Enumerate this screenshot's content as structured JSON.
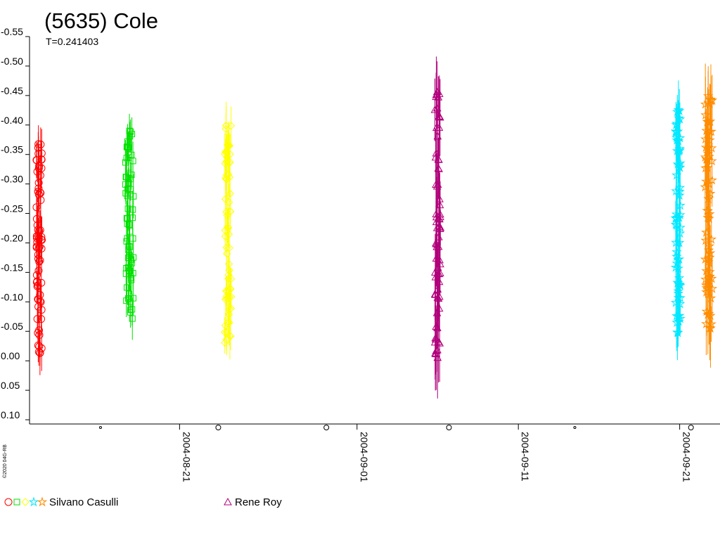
{
  "chart_data": {
    "type": "scatter",
    "title": "(5635) Cole",
    "subtitle": "T=0.241403",
    "credit": "©2020 04G-RB",
    "y_ticks": [
      "-0.55",
      "-0.50",
      "-0.45",
      "-0.40",
      "-0.35",
      "-0.30",
      "-0.25",
      "-0.20",
      "-0.15",
      "-0.10",
      "-0.05",
      "0.00",
      "0.05",
      "0.10"
    ],
    "ylim": [
      -0.55,
      0.1
    ],
    "y_inverted": true,
    "x_ticks": [
      {
        "label": "2004-08-21",
        "day": 0
      },
      {
        "label": "2004-09-01",
        "day": 11
      },
      {
        "label": "2004-09-11",
        "day": 21
      },
      {
        "label": "2004-09-21",
        "day": 31
      }
    ],
    "xlim_days": [
      -9.3,
      33.5
    ],
    "moon_phase_days": [
      -4.9,
      2.4,
      9.1,
      16.7,
      24.5,
      31.7
    ],
    "series": [
      {
        "observer": "Silvano Casulli",
        "color": "#ff0000",
        "marker": "circle",
        "day": -8.7,
        "spread": 0.35,
        "ymin": -0.37,
        "ymax": -0.01,
        "err": 0.03
      },
      {
        "observer": "Silvano Casulli",
        "color": "#00e000",
        "marker": "square",
        "day": -3.1,
        "spread": 0.5,
        "ymin": -0.39,
        "ymax": -0.07,
        "err": 0.03
      },
      {
        "observer": "Silvano Casulli",
        "color": "#ffff00",
        "marker": "diamond",
        "day": 3.0,
        "spread": 0.4,
        "ymin": -0.4,
        "ymax": -0.03,
        "err": 0.03
      },
      {
        "observer": "Rene Roy",
        "color": "#b0007a",
        "marker": "triangle",
        "day": 16.0,
        "spread": 0.35,
        "ymin": -0.46,
        "ymax": 0.0,
        "err": 0.05
      },
      {
        "observer": "Silvano Casulli",
        "color": "#00e8ff",
        "marker": "star",
        "day": 30.9,
        "spread": 0.3,
        "ymin": -0.43,
        "ymax": -0.04,
        "err": 0.04
      },
      {
        "observer": "Silvano Casulli",
        "color": "#ff8c00",
        "marker": "star",
        "day": 32.8,
        "spread": 0.45,
        "ymin": -0.45,
        "ymax": -0.05,
        "err": 0.05
      }
    ],
    "legend": [
      {
        "label": "Silvano Casulli",
        "markers": [
          "circle",
          "square",
          "diamond",
          "star",
          "star"
        ],
        "colors": [
          "#ff0000",
          "#00e000",
          "#ffff00",
          "#00e8ff",
          "#ff8c00"
        ]
      },
      {
        "label": "Rene Roy",
        "markers": [
          "triangle"
        ],
        "colors": [
          "#b0007a"
        ]
      }
    ]
  }
}
